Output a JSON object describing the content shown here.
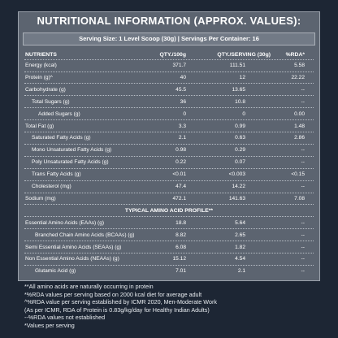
{
  "title": "NUTRITIONAL INFORMATION (APPROX. VALUES):",
  "serving": "Serving Size: 1 Level Scoop (30g)  |  Servings Per Container: 16",
  "table": {
    "header": [
      "NUTRIENTS",
      "QTY./100g",
      "QTY./SERVING (30g)",
      "%RDA*"
    ],
    "rows": [
      [
        "Energy (kcal)",
        "371.7",
        "111.51",
        "5.58"
      ],
      [
        "Protein (g)^",
        "40",
        "12",
        "22.22"
      ],
      [
        "Carbohydrate (g)",
        "45.5",
        "13.65",
        "--"
      ],
      [
        "Total Sugars (g)",
        "36",
        "10.8",
        "--"
      ],
      [
        "Added Sugars (g)",
        "0",
        "0",
        "0.00"
      ],
      [
        "Total Fat (g)",
        "3.3",
        "0.99",
        "1.48"
      ],
      [
        "Saturated Fatty Acids (g)",
        "2.1",
        "0.63",
        "2.86"
      ],
      [
        "Mono Unsaturated Fatty Acids (g)",
        "0.98",
        "0.29",
        "--"
      ],
      [
        "Poly Unsaturated Fatty Acids (g)",
        "0.22",
        "0.07",
        "--"
      ],
      [
        "Trans Fatty Acids (g)",
        "<0.01",
        "<0.003",
        "<0.15"
      ],
      [
        "Cholesterol (mg)",
        "47.4",
        "14.22",
        "--"
      ],
      [
        "Sodium (mg)",
        "472.1",
        "141.63",
        "7.08"
      ]
    ],
    "section": "TYPICAL AMINO ACID PROFILE**",
    "amino_rows": [
      [
        "Essential Amino Acids (EAAs) (g)",
        "18.8",
        "5.64",
        "--"
      ],
      [
        "Branched Chain Amino Acids (BCAAs) (g)",
        "8.82",
        "2.65",
        "--"
      ],
      [
        "Semi Essential Amino Acids (SEAAs) (g)",
        "6.08",
        "1.82",
        "--"
      ],
      [
        "Non Essential Amino Acids (NEAAs) (g)",
        "15.12",
        "4.54",
        "--"
      ],
      [
        "Glutamic Acid (g)",
        "7.01",
        "2.1",
        "--"
      ]
    ]
  },
  "footnotes": [
    "**All amino acids are naturally occurring in protein",
    "*%RDA values per serving based on 2000 kcal diet for average adult",
    "^%RDA value per serving established by ICMR 2020, Men-Moderate Work",
    "(As per ICMR, RDA of Protein is 0.83g/kg/day for Healthy Indian Adults)",
    "--%RDA values not established",
    "*Values per serving"
  ]
}
